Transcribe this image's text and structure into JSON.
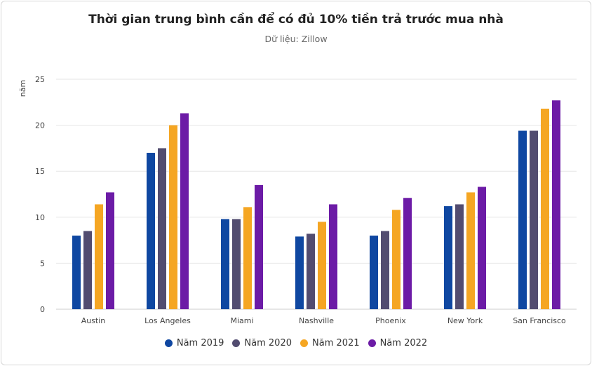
{
  "chart_data": {
    "type": "bar",
    "title": "Thời gian trung bình cần để có đủ 10% tiền trả trước mua nhà",
    "subtitle": "Dữ liệu: Zillow",
    "xlabel": "",
    "ylabel": "năm",
    "ylim": [
      0,
      25
    ],
    "yticks": [
      0,
      5,
      10,
      15,
      20,
      25
    ],
    "grid": true,
    "legend_placement": "bottom",
    "categories": [
      "Austin",
      "Los Angeles",
      "Miami",
      "Nashville",
      "Phoenix",
      "New York",
      "San Francisco"
    ],
    "series": [
      {
        "name": "Năm 2019",
        "color": "#0f47a1",
        "values": [
          8.0,
          17.0,
          9.8,
          7.9,
          8.0,
          11.2,
          19.4
        ]
      },
      {
        "name": "Năm 2020",
        "color": "#524c70",
        "values": [
          8.5,
          17.5,
          9.8,
          8.2,
          8.5,
          11.4,
          19.4
        ]
      },
      {
        "name": "Năm 2021",
        "color": "#f5a623",
        "values": [
          11.4,
          20.0,
          11.1,
          9.5,
          10.8,
          12.7,
          21.8
        ]
      },
      {
        "name": "Năm 2022",
        "color": "#6c1ba6",
        "values": [
          12.7,
          21.3,
          13.5,
          11.4,
          12.1,
          13.3,
          22.7
        ]
      }
    ]
  }
}
